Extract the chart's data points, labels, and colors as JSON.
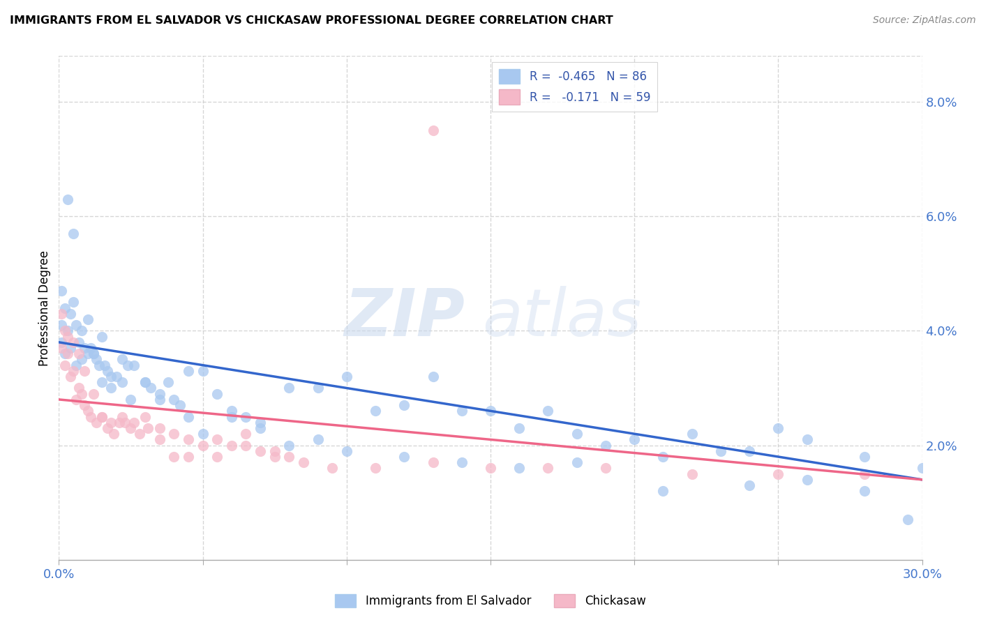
{
  "title": "IMMIGRANTS FROM EL SALVADOR VS CHICKASAW PROFESSIONAL DEGREE CORRELATION CHART",
  "source": "Source: ZipAtlas.com",
  "ylabel": "Professional Degree",
  "blue_color": "#A8C8F0",
  "pink_color": "#F5B8C8",
  "blue_line_color": "#3366CC",
  "pink_line_color": "#EE6688",
  "watermark_zip": "ZIP",
  "watermark_atlas": "atlas",
  "xlim": [
    0.0,
    0.3
  ],
  "ylim": [
    0.0,
    0.088
  ],
  "blue_line_x0": 0.0,
  "blue_line_y0": 0.038,
  "blue_line_x1": 0.3,
  "blue_line_y1": 0.014,
  "pink_line_x0": 0.0,
  "pink_line_y0": 0.028,
  "pink_line_x1": 0.3,
  "pink_line_y1": 0.014,
  "blue_scatter_x": [
    0.001,
    0.001,
    0.002,
    0.003,
    0.004,
    0.005,
    0.006,
    0.007,
    0.008,
    0.009,
    0.01,
    0.011,
    0.012,
    0.013,
    0.014,
    0.015,
    0.016,
    0.017,
    0.018,
    0.02,
    0.022,
    0.024,
    0.026,
    0.03,
    0.032,
    0.035,
    0.038,
    0.042,
    0.045,
    0.05,
    0.055,
    0.06,
    0.065,
    0.07,
    0.08,
    0.09,
    0.1,
    0.11,
    0.12,
    0.13,
    0.14,
    0.15,
    0.16,
    0.17,
    0.18,
    0.19,
    0.2,
    0.21,
    0.22,
    0.23,
    0.24,
    0.25,
    0.26,
    0.28,
    0.3,
    0.001,
    0.002,
    0.004,
    0.006,
    0.008,
    0.01,
    0.012,
    0.015,
    0.018,
    0.022,
    0.025,
    0.03,
    0.035,
    0.04,
    0.045,
    0.05,
    0.06,
    0.07,
    0.08,
    0.09,
    0.1,
    0.12,
    0.14,
    0.16,
    0.18,
    0.21,
    0.24,
    0.26,
    0.28,
    0.295,
    0.003,
    0.005
  ],
  "blue_scatter_y": [
    0.047,
    0.041,
    0.044,
    0.04,
    0.043,
    0.045,
    0.041,
    0.038,
    0.04,
    0.037,
    0.042,
    0.037,
    0.036,
    0.035,
    0.034,
    0.039,
    0.034,
    0.033,
    0.032,
    0.032,
    0.035,
    0.034,
    0.034,
    0.031,
    0.03,
    0.029,
    0.031,
    0.027,
    0.033,
    0.033,
    0.029,
    0.026,
    0.025,
    0.024,
    0.03,
    0.03,
    0.032,
    0.026,
    0.027,
    0.032,
    0.026,
    0.026,
    0.023,
    0.026,
    0.022,
    0.02,
    0.021,
    0.018,
    0.022,
    0.019,
    0.019,
    0.023,
    0.021,
    0.018,
    0.016,
    0.038,
    0.036,
    0.037,
    0.034,
    0.035,
    0.036,
    0.036,
    0.031,
    0.03,
    0.031,
    0.028,
    0.031,
    0.028,
    0.028,
    0.025,
    0.022,
    0.025,
    0.023,
    0.02,
    0.021,
    0.019,
    0.018,
    0.017,
    0.016,
    0.017,
    0.012,
    0.013,
    0.014,
    0.012,
    0.007,
    0.063,
    0.057
  ],
  "pink_scatter_x": [
    0.001,
    0.002,
    0.003,
    0.004,
    0.005,
    0.006,
    0.007,
    0.008,
    0.009,
    0.01,
    0.011,
    0.013,
    0.015,
    0.017,
    0.019,
    0.021,
    0.023,
    0.025,
    0.028,
    0.031,
    0.035,
    0.04,
    0.045,
    0.05,
    0.055,
    0.06,
    0.065,
    0.07,
    0.075,
    0.08,
    0.001,
    0.002,
    0.003,
    0.005,
    0.007,
    0.009,
    0.012,
    0.015,
    0.018,
    0.022,
    0.026,
    0.03,
    0.035,
    0.04,
    0.045,
    0.055,
    0.065,
    0.075,
    0.085,
    0.095,
    0.11,
    0.13,
    0.15,
    0.17,
    0.19,
    0.22,
    0.25,
    0.28,
    0.13
  ],
  "pink_scatter_y": [
    0.037,
    0.034,
    0.036,
    0.032,
    0.033,
    0.028,
    0.03,
    0.029,
    0.027,
    0.026,
    0.025,
    0.024,
    0.025,
    0.023,
    0.022,
    0.024,
    0.024,
    0.023,
    0.022,
    0.023,
    0.021,
    0.022,
    0.021,
    0.02,
    0.021,
    0.02,
    0.02,
    0.019,
    0.019,
    0.018,
    0.043,
    0.04,
    0.039,
    0.038,
    0.036,
    0.033,
    0.029,
    0.025,
    0.024,
    0.025,
    0.024,
    0.025,
    0.023,
    0.018,
    0.018,
    0.018,
    0.022,
    0.018,
    0.017,
    0.016,
    0.016,
    0.017,
    0.016,
    0.016,
    0.016,
    0.015,
    0.015,
    0.015,
    0.075
  ],
  "right_yticks": [
    0.02,
    0.04,
    0.06,
    0.08
  ],
  "right_ylabels": [
    "2.0%",
    "4.0%",
    "6.0%",
    "8.0%"
  ],
  "xtick_positions": [
    0.0,
    0.05,
    0.1,
    0.15,
    0.2,
    0.25,
    0.3
  ],
  "background_color": "#FFFFFF",
  "grid_color": "#CCCCCC"
}
